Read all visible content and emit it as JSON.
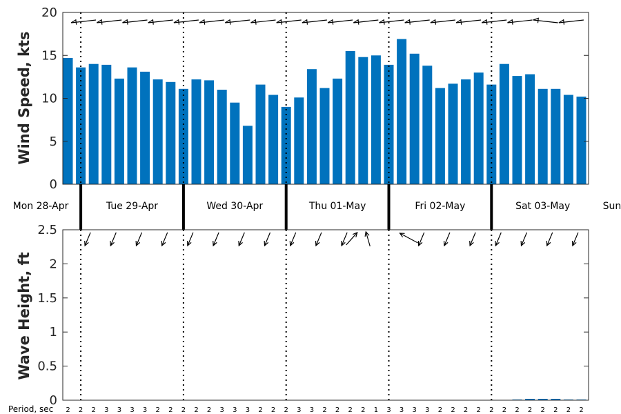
{
  "chart_data": [
    {
      "type": "bar",
      "ylabel": "Wind Speed, kts",
      "ylim": [
        0,
        20
      ],
      "yticks": [
        "0",
        "5",
        "10",
        "15",
        "20"
      ],
      "grid": false,
      "bar_color": "#0072bd",
      "values": [
        14.7,
        13.6,
        14.0,
        13.9,
        12.3,
        13.6,
        13.1,
        12.2,
        11.9,
        11.1,
        12.2,
        12.1,
        11.0,
        9.5,
        6.8,
        11.6,
        10.4,
        9.0,
        10.1,
        13.4,
        11.2,
        12.3,
        15.5,
        14.8,
        15.0,
        13.9,
        16.9,
        15.2,
        13.8,
        11.2,
        11.7,
        12.2,
        13.0,
        11.6,
        14.0,
        12.6,
        12.8,
        11.1,
        11.1,
        10.4,
        10.2
      ],
      "wind_direction_arrows_deg": [
        200,
        200,
        200,
        200,
        200,
        200,
        200,
        200,
        200,
        200,
        200,
        200,
        195,
        200,
        200,
        200,
        200,
        200,
        200,
        200,
        200,
        200,
        200,
        200,
        200,
        200,
        200,
        200,
        200,
        200,
        200,
        200,
        200,
        200,
        200,
        200,
        195,
        195,
        200,
        200,
        200
      ]
    },
    {
      "type": "bar",
      "ylabel": "Wave Height, ft",
      "ylim": [
        0,
        2.5
      ],
      "yticks": [
        "0",
        "0.5",
        "1",
        "1.5",
        "2",
        "2.5"
      ],
      "grid": false,
      "bar_color": "#0072bd",
      "values": [
        0,
        0,
        0,
        0,
        0,
        0,
        0,
        0,
        0,
        0,
        0,
        0,
        0,
        0,
        0,
        0,
        0,
        0,
        0,
        0,
        0,
        0,
        0,
        0,
        0,
        0,
        0,
        0,
        0,
        0,
        0,
        0,
        0,
        0,
        0,
        0.01,
        0.02,
        0.02,
        0.02,
        0.01,
        0.01
      ],
      "wave_direction_arrows": [
        {
          "index": 1,
          "dir": "sw"
        },
        {
          "index": 3,
          "dir": "sw"
        },
        {
          "index": 5,
          "dir": "sw"
        },
        {
          "index": 7,
          "dir": "sw"
        },
        {
          "index": 9,
          "dir": "sw"
        },
        {
          "index": 11,
          "dir": "sw"
        },
        {
          "index": 13,
          "dir": "sw"
        },
        {
          "index": 15,
          "dir": "sw"
        },
        {
          "index": 17,
          "dir": "sw"
        },
        {
          "index": 19,
          "dir": "sw"
        },
        {
          "index": 21,
          "dir": "sw"
        },
        {
          "index": 22,
          "dir": "ne-up"
        },
        {
          "index": 23,
          "dir": "n"
        },
        {
          "index": 25,
          "dir": "nw-up"
        },
        {
          "index": 27,
          "dir": "sw"
        },
        {
          "index": 29,
          "dir": "sw"
        },
        {
          "index": 31,
          "dir": "sw"
        },
        {
          "index": 33,
          "dir": "sw"
        },
        {
          "index": 35,
          "dir": "sw"
        },
        {
          "index": 37,
          "dir": "sw"
        },
        {
          "index": 39,
          "dir": "sw"
        }
      ],
      "period_label": "Period, sec",
      "period_values": [
        "2",
        "2",
        "2",
        "3",
        "3",
        "3",
        "3",
        "2",
        "2",
        "2",
        "2",
        "2",
        "3",
        "3",
        "3",
        "2",
        "2",
        "2",
        "3",
        "3",
        "2",
        "2",
        "2",
        "2",
        "1",
        "3",
        "3",
        "3",
        "3",
        "2",
        "2",
        "2",
        "2",
        "2",
        "2",
        "2",
        "2",
        "2",
        "2",
        "2",
        "2"
      ]
    }
  ],
  "day_labels": [
    "Mon 28-Apr",
    "Tue 29-Apr",
    "Wed 30-Apr",
    "Thu 01-May",
    "Fri 02-May",
    "Sat 03-May",
    "Sun"
  ]
}
